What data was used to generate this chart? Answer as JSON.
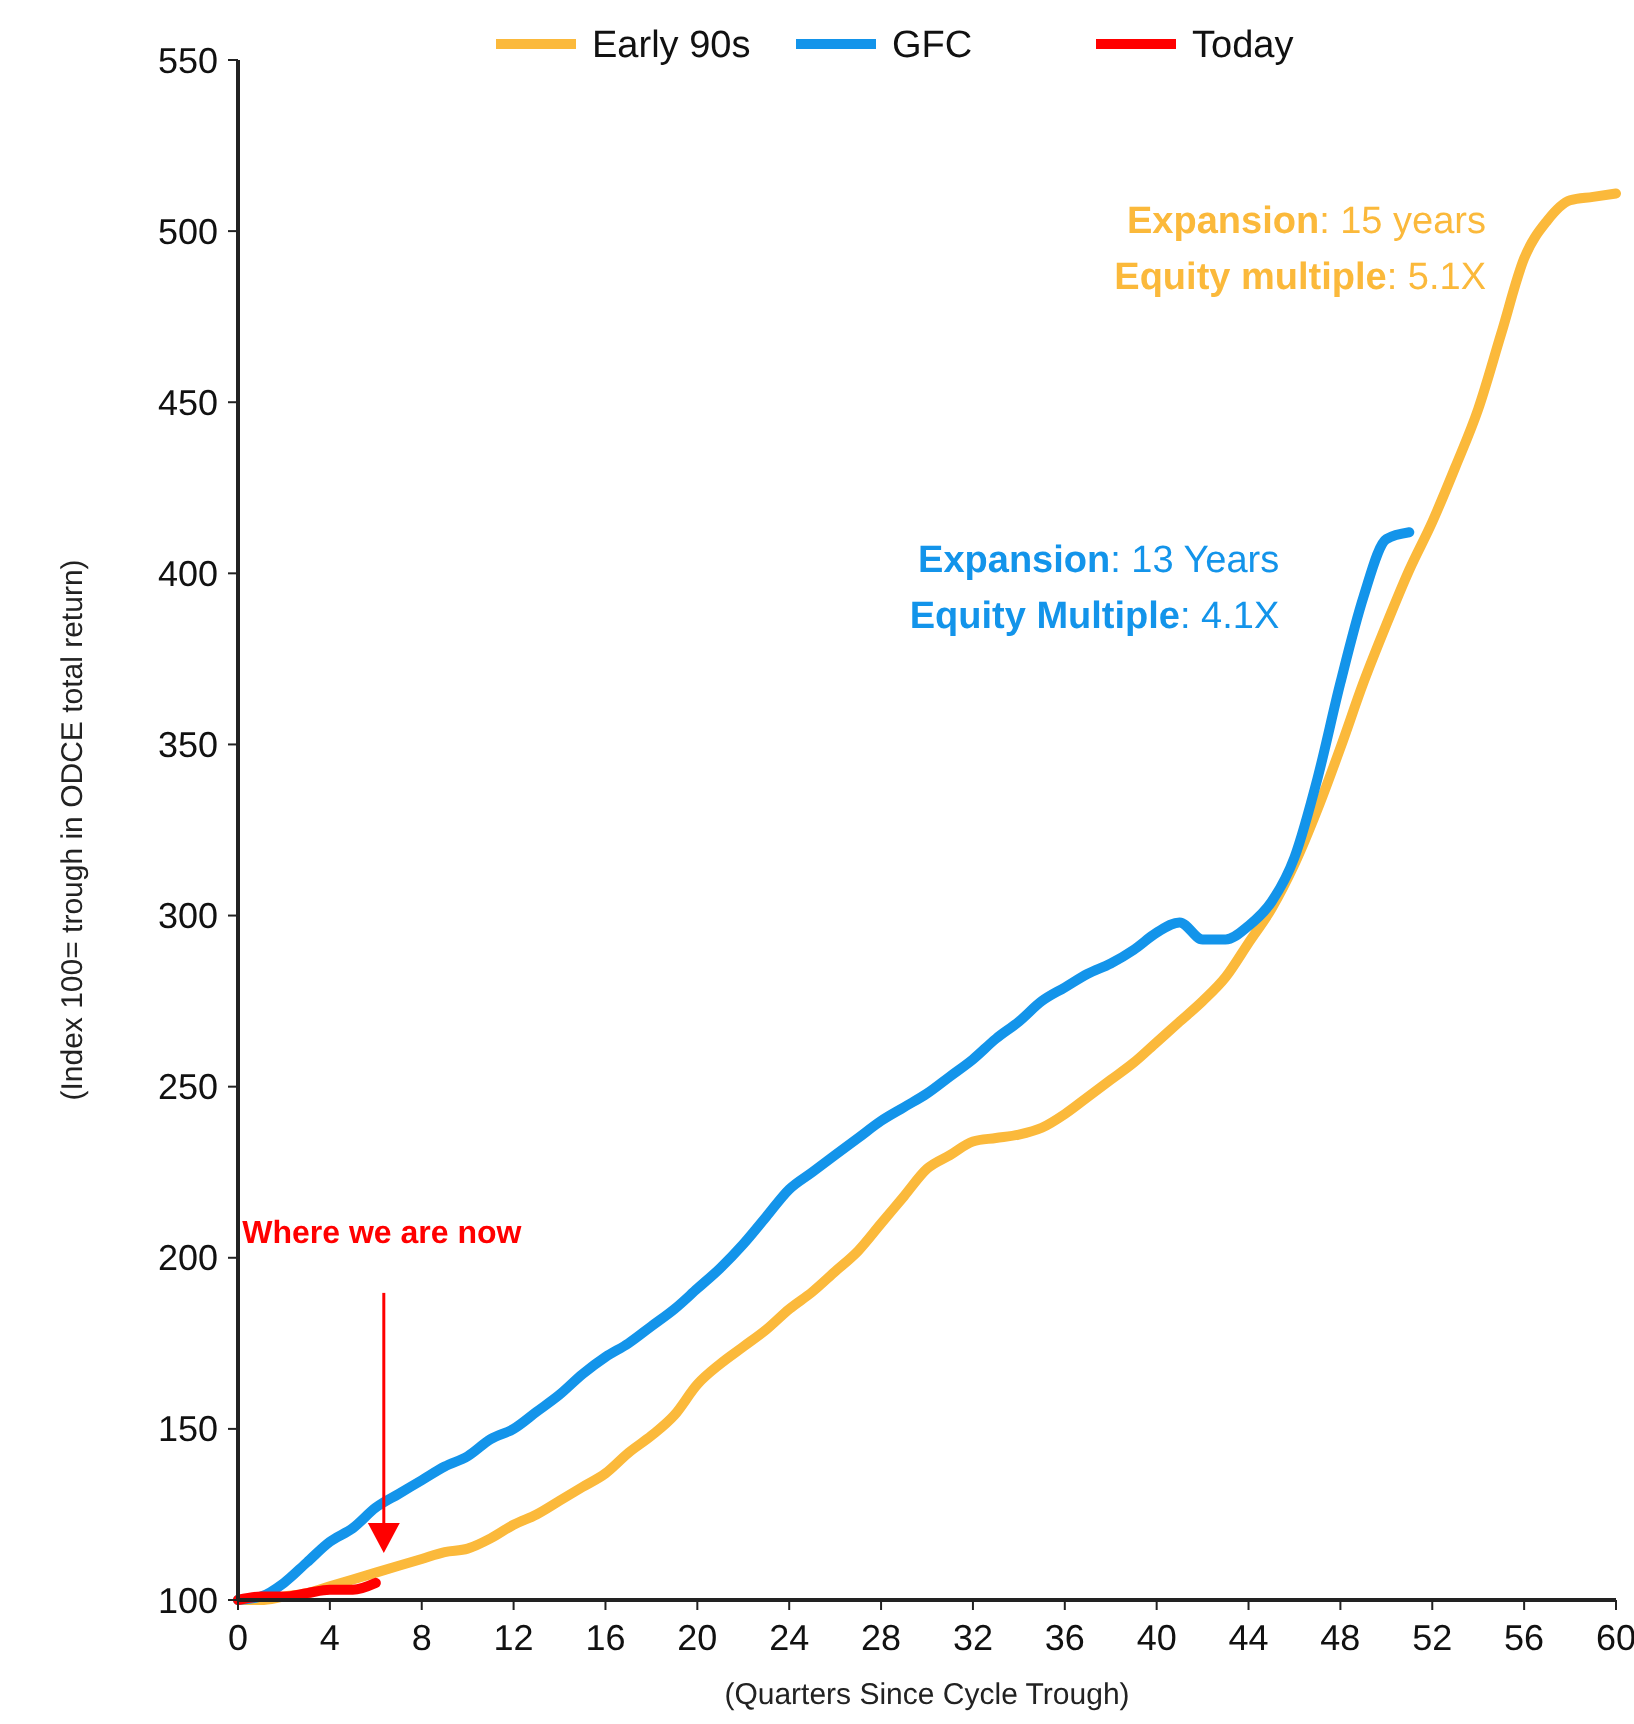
{
  "chart_data": {
    "type": "line",
    "xlabel": "(Quarters Since Cycle Trough)",
    "ylabel": "(Index 100= trough in ODCE total return)",
    "xlim": [
      0,
      60
    ],
    "xticks": [
      0,
      4,
      8,
      12,
      16,
      20,
      24,
      28,
      32,
      36,
      40,
      44,
      48,
      52,
      56,
      60
    ],
    "ylim": [
      100,
      550
    ],
    "yticks": [
      100,
      150,
      200,
      250,
      300,
      350,
      400,
      450,
      500,
      550
    ],
    "grid": false,
    "legend": "top",
    "line_style": "solid",
    "series": [
      {
        "name": "Early 90s",
        "color": "#fbb93b",
        "x": [
          0,
          1,
          2,
          3,
          4,
          5,
          6,
          7,
          8,
          9,
          10,
          11,
          12,
          13,
          14,
          15,
          16,
          17,
          18,
          19,
          20,
          21,
          22,
          23,
          24,
          25,
          26,
          27,
          28,
          29,
          30,
          31,
          32,
          33,
          34,
          35,
          36,
          37,
          38,
          39,
          40,
          41,
          42,
          43,
          44,
          45,
          46,
          47,
          48,
          49,
          50,
          51,
          52,
          53,
          54,
          55,
          56,
          57,
          58,
          59,
          60
        ],
        "values": [
          100,
          100,
          101,
          102,
          104,
          106,
          108,
          110,
          112,
          114,
          115,
          118,
          122,
          125,
          129,
          133,
          137,
          143,
          148,
          154,
          163,
          169,
          174,
          179,
          185,
          190,
          196,
          202,
          210,
          218,
          226,
          230,
          234,
          235,
          236,
          238,
          242,
          247,
          252,
          257,
          263,
          269,
          275,
          282,
          292,
          302,
          315,
          331,
          349,
          368,
          385,
          401,
          415,
          431,
          448,
          470,
          492,
          503,
          509,
          510,
          511
        ]
      },
      {
        "name": "GFC",
        "color": "#1394ea",
        "x": [
          0,
          1,
          2,
          3,
          4,
          5,
          6,
          7,
          8,
          9,
          10,
          11,
          12,
          13,
          14,
          15,
          16,
          17,
          18,
          19,
          20,
          21,
          22,
          23,
          24,
          25,
          26,
          27,
          28,
          29,
          30,
          31,
          32,
          33,
          34,
          35,
          36,
          37,
          38,
          39,
          40,
          41,
          42,
          43,
          44,
          45,
          46,
          47,
          48,
          49,
          50,
          51
        ],
        "values": [
          100,
          101,
          105,
          111,
          117,
          121,
          127,
          131,
          135,
          139,
          142,
          147,
          150,
          155,
          160,
          166,
          171,
          175,
          180,
          185,
          191,
          197,
          204,
          212,
          220,
          225,
          230,
          235,
          240,
          244,
          248,
          253,
          258,
          264,
          269,
          275,
          279,
          283,
          286,
          290,
          295,
          298,
          293,
          293,
          297,
          304,
          317,
          340,
          368,
          393,
          410,
          412
        ]
      },
      {
        "name": "Today",
        "color": "#ff0000",
        "x": [
          0,
          1,
          2,
          3,
          4,
          5,
          6
        ],
        "values": [
          100,
          101,
          101,
          102,
          103,
          103,
          105
        ]
      }
    ],
    "annotations": [
      "Expansion: 15 years\nEquity multiple: 5.1X",
      "Expansion: 13 Years\nEquity Multiple: 4.1X",
      "Where we are now"
    ]
  }
}
